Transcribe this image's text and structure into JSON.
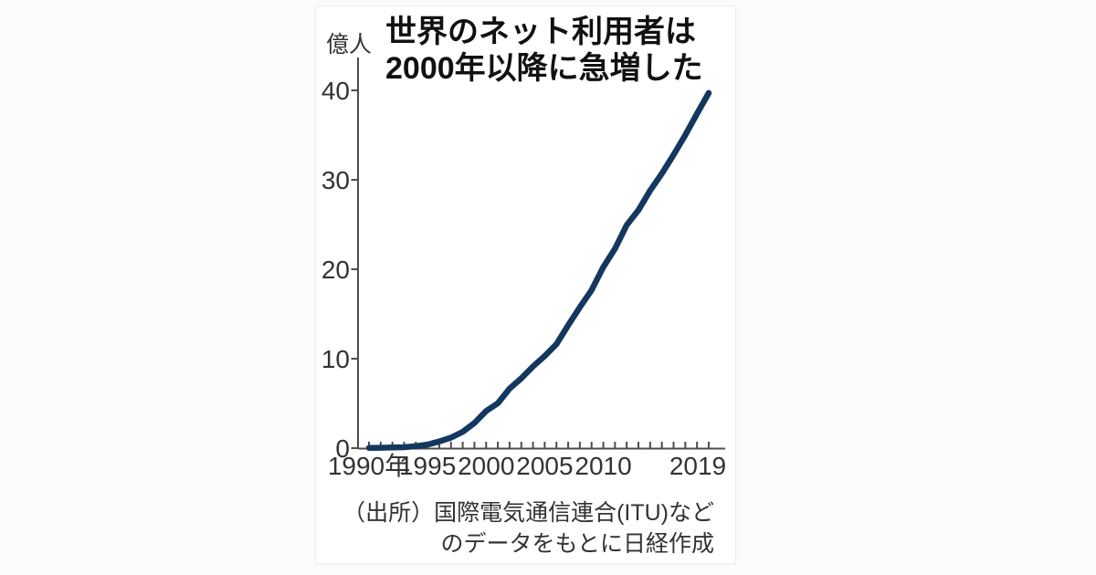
{
  "chart_data": {
    "type": "line",
    "title": "世界のネット利用者は2000年以降に急増した",
    "title_lines": [
      "世界のネット利用者は",
      "2000年以降に急増した"
    ],
    "unit_label": "億人",
    "ylabel": "億人",
    "xlabel": "",
    "source_lines": [
      "（出所）国際電気通信連合(ITU)など",
      "のデータをもとに日経作成"
    ],
    "x": [
      1990,
      1991,
      1992,
      1993,
      1994,
      1995,
      1996,
      1997,
      1998,
      1999,
      2000,
      2001,
      2002,
      2003,
      2004,
      2005,
      2006,
      2007,
      2008,
      2009,
      2010,
      2011,
      2012,
      2013,
      2014,
      2015,
      2016,
      2017,
      2018,
      2019
    ],
    "values": [
      0.03,
      0.04,
      0.07,
      0.1,
      0.21,
      0.4,
      0.74,
      1.17,
      1.83,
      2.81,
      4.15,
      5.02,
      6.65,
      7.81,
      9.13,
      10.3,
      11.62,
      13.73,
      15.75,
      17.66,
      20.23,
      22.31,
      24.94,
      26.6,
      28.8,
      30.7,
      32.8,
      35.0,
      37.4,
      39.7
    ],
    "x_tick_labels": [
      {
        "year": 1990,
        "label": "1990年"
      },
      {
        "year": 1995,
        "label": "1995"
      },
      {
        "year": 2000,
        "label": "2000"
      },
      {
        "year": 2005,
        "label": "2005"
      },
      {
        "year": 2010,
        "label": "2010"
      },
      {
        "year": 2019,
        "label": "2019"
      }
    ],
    "y_ticks": [
      0,
      10,
      20,
      30,
      40
    ],
    "ylim": [
      0,
      40.8
    ],
    "xlim": [
      1990,
      2019
    ],
    "grid": false,
    "legend": "none",
    "colors": {
      "line": "#14375f",
      "axis": "#4d4d4d",
      "tick_label": "#333333",
      "title": "#111111",
      "source": "#333333"
    }
  }
}
